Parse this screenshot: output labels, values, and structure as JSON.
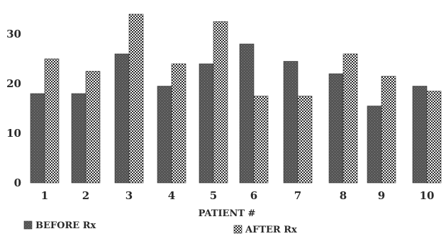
{
  "chart_data": {
    "type": "bar",
    "title": "",
    "xlabel": "PATIENT #",
    "ylabel": "",
    "categories": [
      "1",
      "2",
      "3",
      "4",
      "5",
      "6",
      "7",
      "8",
      "9",
      "10"
    ],
    "series": [
      {
        "name": "BEFORE Rx",
        "values": [
          18,
          18,
          26,
          19.5,
          24,
          28,
          24.5,
          22,
          15.5,
          19.5
        ],
        "color": "#5a5a5a"
      },
      {
        "name": "AFTER Rx",
        "values": [
          25,
          22.5,
          34,
          24,
          32.5,
          17.5,
          17.5,
          26,
          21.5,
          18.5
        ],
        "color": "#3a3a3a"
      }
    ],
    "yticks": [
      0,
      10,
      20,
      30
    ],
    "ylim": [
      0,
      35
    ],
    "grid": false,
    "legend": "bottom-left"
  }
}
